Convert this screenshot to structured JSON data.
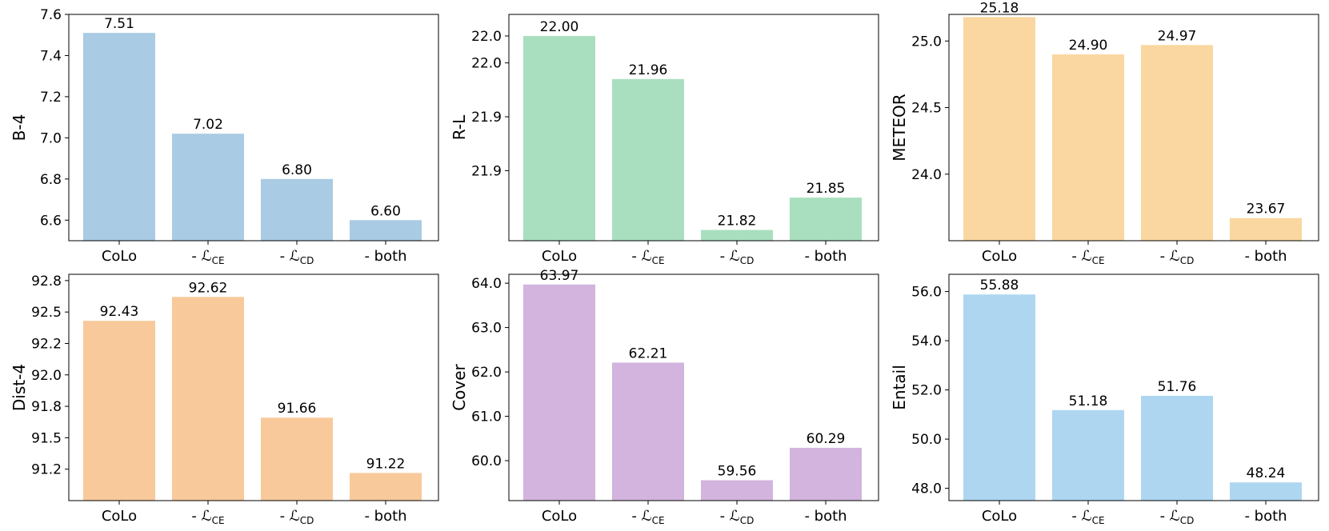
{
  "chart_data": [
    {
      "type": "bar",
      "ylabel": "B-4",
      "color": "#a9cbe3",
      "categories": [
        "CoLo",
        "- ℒCE",
        "- ℒCD",
        "- both"
      ],
      "values": [
        7.51,
        7.02,
        6.8,
        6.6
      ],
      "data_labels": [
        "7.51",
        "7.02",
        "6.80",
        "6.60"
      ],
      "ylim": [
        6.5,
        7.6
      ],
      "ticks": [
        6.6,
        6.8,
        7.0,
        7.2,
        7.4,
        7.6
      ],
      "tick_labels": [
        "6.6",
        "6.8",
        "7.0",
        "7.2",
        "7.4",
        "7.6"
      ]
    },
    {
      "type": "bar",
      "ylabel": "R-L",
      "color": "#a9dfbf",
      "categories": [
        "CoLo",
        "- ℒCE",
        "- ℒCD",
        "- both"
      ],
      "values": [
        22.0,
        21.96,
        21.82,
        21.85
      ],
      "data_labels": [
        "22.00",
        "21.96",
        "21.82",
        "21.85"
      ],
      "ylim": [
        21.81,
        22.02
      ],
      "ticks": [
        21.875,
        21.925,
        21.975,
        22.0
      ],
      "tick_labels": [
        "21.9",
        "21.9",
        "22.0",
        "22.0"
      ]
    },
    {
      "type": "bar",
      "ylabel": "METEOR",
      "color": "#fad7a0",
      "categories": [
        "CoLo",
        "- ℒCE",
        "- ℒCD",
        "- both"
      ],
      "values": [
        25.18,
        24.9,
        24.97,
        23.67
      ],
      "data_labels": [
        "25.18",
        "24.90",
        "24.97",
        "23.67"
      ],
      "ylim": [
        23.5,
        25.2
      ],
      "ticks": [
        24.0,
        24.5,
        25.0
      ],
      "tick_labels": [
        "24.0",
        "24.5",
        "25.0"
      ]
    },
    {
      "type": "bar",
      "ylabel": "Dist-4",
      "color": "#f8c99b",
      "categories": [
        "CoLo",
        "- ℒCE",
        "- ℒCD",
        "- both"
      ],
      "values": [
        92.43,
        92.62,
        91.66,
        91.22
      ],
      "data_labels": [
        "92.43",
        "92.62",
        "91.66",
        "91.22"
      ],
      "ylim": [
        91.0,
        92.8
      ],
      "ticks": [
        91.25,
        91.5,
        91.75,
        92.0,
        92.25,
        92.5,
        92.75
      ],
      "tick_labels": [
        "91.2",
        "91.5",
        "91.8",
        "92.0",
        "92.2",
        "92.5",
        "92.8"
      ]
    },
    {
      "type": "bar",
      "ylabel": "Cover",
      "color": "#d2b4de",
      "categories": [
        "CoLo",
        "- ℒCE",
        "- ℒCD",
        "- both"
      ],
      "values": [
        63.97,
        62.21,
        59.56,
        60.29
      ],
      "data_labels": [
        "63.97",
        "62.21",
        "59.56",
        "60.29"
      ],
      "ylim": [
        59.1,
        64.2
      ],
      "ticks": [
        60.0,
        61.0,
        62.0,
        63.0,
        64.0
      ],
      "tick_labels": [
        "60.0",
        "61.0",
        "62.0",
        "63.0",
        "64.0"
      ]
    },
    {
      "type": "bar",
      "ylabel": "Entail",
      "color": "#aed6f1",
      "categories": [
        "CoLo",
        "- ℒCE",
        "- ℒCD",
        "- both"
      ],
      "values": [
        55.88,
        51.18,
        51.76,
        48.24
      ],
      "data_labels": [
        "55.88",
        "51.18",
        "51.76",
        "48.24"
      ],
      "ylim": [
        47.5,
        56.7
      ],
      "ticks": [
        48.0,
        50.0,
        52.0,
        54.0,
        56.0
      ],
      "tick_labels": [
        "48.0",
        "50.0",
        "52.0",
        "54.0",
        "56.0"
      ]
    }
  ]
}
